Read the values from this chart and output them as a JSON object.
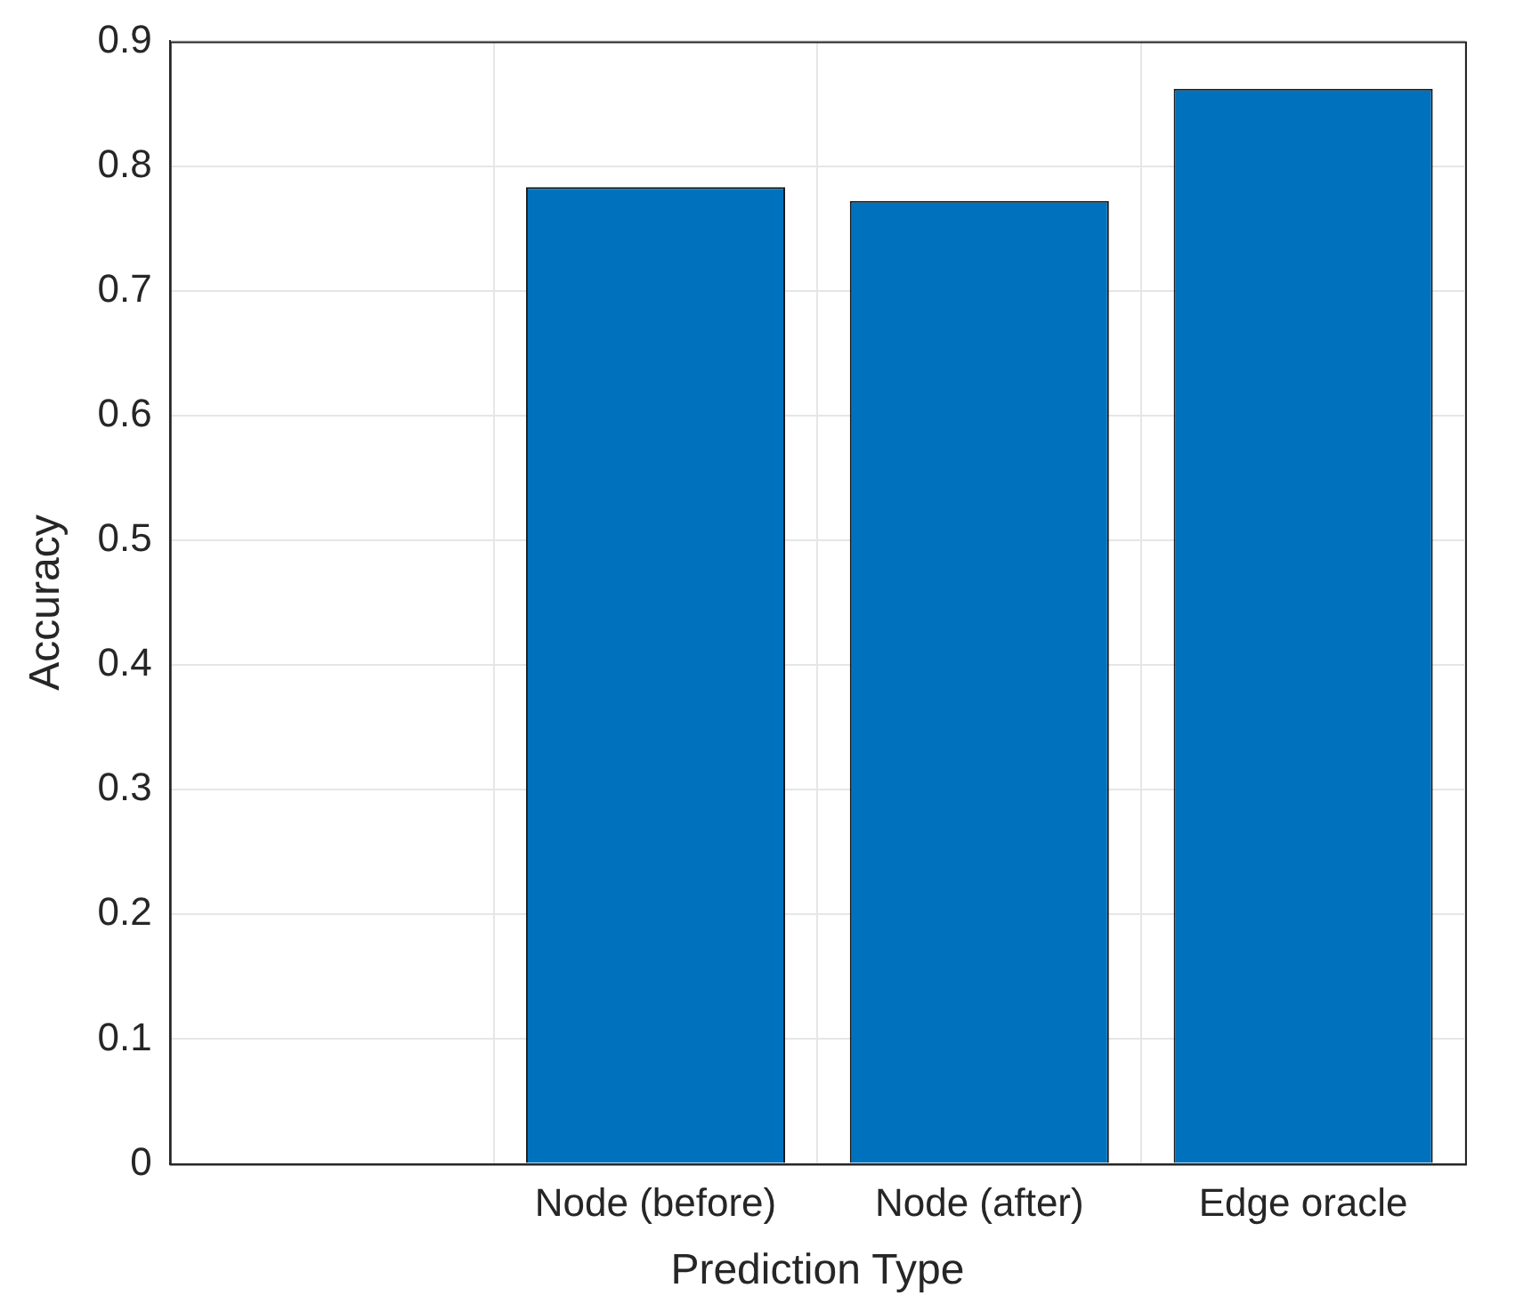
{
  "chart_data": {
    "type": "bar",
    "xlabel": "Prediction Type",
    "ylabel": "Accuracy",
    "categories": [
      null,
      "Node (before)",
      "Node (after)",
      "Edge oracle"
    ],
    "values": [
      null,
      0.783,
      0.772,
      0.862
    ],
    "color": "#0072bd",
    "ylim": [
      0,
      0.9
    ],
    "yticks": [
      0,
      0.1,
      0.2,
      0.3,
      0.4,
      0.5,
      0.6,
      0.7,
      0.8,
      0.9
    ],
    "grid": true
  }
}
